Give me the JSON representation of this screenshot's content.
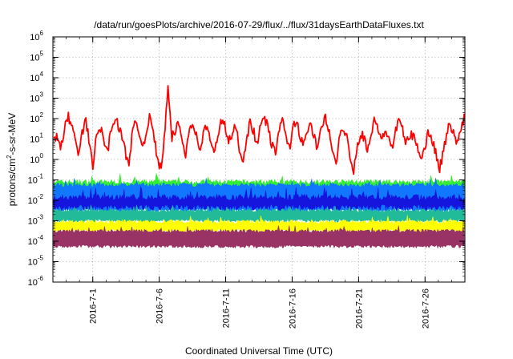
{
  "chart_data": {
    "type": "area",
    "title": "/data/run/goesPlots/archive/2016-07-29/flux/../flux/31daysEarthDataFluxes.txt",
    "xlabel": "Coordinated Universal Time (UTC)",
    "ylabel": {
      "prefix": "protons/cm",
      "sup": "2",
      "suffix": "-s-sr-MeV"
    },
    "yscale": "log",
    "ylim_exponents": [
      -6,
      6
    ],
    "y_tick_base": "10",
    "y_tick_exponents": [
      "-6",
      "-5",
      "-4",
      "-3",
      "-2",
      "-1",
      "0",
      "1",
      "2",
      "3",
      "4",
      "5",
      "6"
    ],
    "x_start": "2016-06-28",
    "x_end": "2016-07-29",
    "x_ticks": [
      "2016-7-1",
      "2016-7-6",
      "2016-7-11",
      "2016-7-16",
      "2016-7-21",
      "2016-7-26"
    ],
    "grid": true,
    "series": [
      {
        "color": "#ff0000",
        "style": "line",
        "log10_values": [
          1.2,
          1.0,
          0.5,
          1.5,
          2.1,
          1.8,
          0.9,
          0.2,
          1.3,
          1.9,
          0.8,
          -0.3,
          1.1,
          1.6,
          1.0,
          0.3,
          1.4,
          2.0,
          1.7,
          1.2,
          0.4,
          -0.2,
          1.2,
          1.8,
          1.3,
          0.6,
          1.5,
          2.1,
          1.2,
          0.1,
          -0.5,
          1.0,
          3.6,
          1.0,
          1.4,
          1.8,
          0.9,
          0.3,
          1.5,
          1.9,
          1.1,
          0.5,
          1.3,
          1.7,
          0.8,
          0.2,
          1.2,
          2.0,
          1.6,
          0.9,
          1.1,
          1.7,
          0.6,
          -0.1,
          1.0,
          1.8,
          1.4,
          0.7,
          1.6,
          2.2,
          1.5,
          0.8,
          0.3,
          1.2,
          1.9,
          1.3,
          0.5,
          1.5,
          2.0,
          1.2,
          0.6,
          1.3,
          1.8,
          1.1,
          0.4,
          1.6,
          2.1,
          1.4,
          0.7,
          -0.4,
          0.9,
          1.6,
          1.2,
          0.3,
          -0.6,
          0.6,
          1.3,
          1.1,
          0.5,
          1.2,
          2.0,
          1.5,
          0.9,
          1.4,
          1.0,
          0.6,
          1.5,
          2.0,
          1.2,
          0.8,
          1.3,
          1.0,
          0.6,
          0.2,
          0.5,
          1.4,
          1.0,
          0.4,
          -0.5,
          0.2,
          1.1,
          1.8,
          1.3,
          0.7,
          1.5,
          2.1
        ]
      },
      {
        "color": "#33ee33",
        "style": "band",
        "log10_low": -1.6,
        "log10_high": -1.1,
        "noise": 0.12
      },
      {
        "color": "#1177ff",
        "style": "band",
        "log10_low": -2.5,
        "log10_high": -1.25,
        "noise": 0.1
      },
      {
        "color": "#1515dd",
        "style": "line-band",
        "log10_low": -2.35,
        "log10_high": -1.85,
        "noise": 0.15
      },
      {
        "color": "#22bb99",
        "style": "band",
        "log10_low": -3.0,
        "log10_high": -2.5,
        "noise": 0.08
      },
      {
        "color": "#ffff00",
        "style": "band",
        "log10_low": -3.5,
        "log10_high": -3.05,
        "noise": 0.1
      },
      {
        "color": "#993366",
        "style": "band",
        "log10_low": -4.25,
        "log10_high": -3.5,
        "noise": 0.08
      }
    ]
  }
}
